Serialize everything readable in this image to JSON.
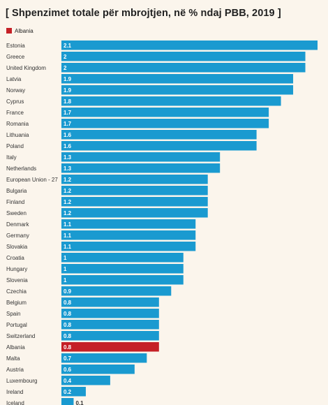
{
  "chart_data": {
    "type": "bar",
    "orientation": "horizontal",
    "title": "[ Shpenzimet totale për mbrojtjen, në % ndaj PBB, 2019 ]",
    "legend": [
      {
        "label": "Albania",
        "color": "#c52026"
      }
    ],
    "legend_position": "top-left",
    "categories": [
      "Estonia",
      "Greece",
      "United Kingdom",
      "Latvia",
      "Norway",
      "Cyprus",
      "France",
      "Romania",
      "Lithuania",
      "Poland",
      "Italy",
      "Netherlands",
      "European Union - 27",
      "Bulgaria",
      "Finland",
      "Sweden",
      "Denmark",
      "Germany",
      "Slovakia",
      "Croatia",
      "Hungary",
      "Slovenia",
      "Czechia",
      "Belgium",
      "Spain",
      "Portugal",
      "Switzerland",
      "Albania",
      "Malta",
      "Austria",
      "Luxembourg",
      "Ireland",
      "Iceland"
    ],
    "values": [
      2.1,
      2,
      2,
      1.9,
      1.9,
      1.8,
      1.7,
      1.7,
      1.6,
      1.6,
      1.3,
      1.3,
      1.2,
      1.2,
      1.2,
      1.2,
      1.1,
      1.1,
      1.1,
      1,
      1,
      1,
      0.9,
      0.8,
      0.8,
      0.8,
      0.8,
      0.8,
      0.7,
      0.6,
      0.4,
      0.2,
      0.1
    ],
    "highlight": "Albania",
    "xlim": [
      0,
      2.1
    ],
    "colors": {
      "bar": "#1a9ad0",
      "highlight": "#c52026",
      "label_inside": "#ffffff",
      "label_outside": "#333333"
    },
    "grid": false
  }
}
